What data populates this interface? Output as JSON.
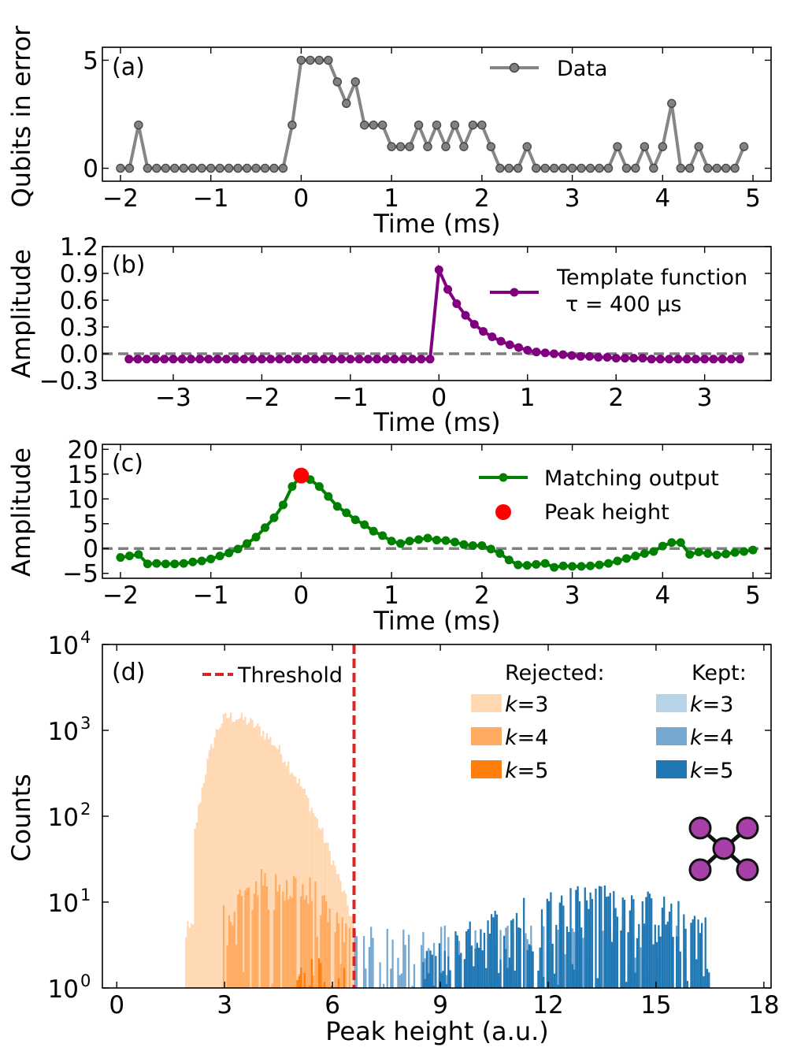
{
  "chart_data": [
    {
      "panel": "(a)",
      "type": "line",
      "xlabel": "Time (ms)",
      "ylabel": "Qubits in error",
      "xlim": [
        -2.2,
        5.2
      ],
      "ylim": [
        -0.6,
        5.6
      ],
      "xticks": [
        -2,
        -1,
        0,
        1,
        2,
        3,
        4,
        5
      ],
      "xtick_labels": [
        "−2",
        "−1",
        "0",
        "1",
        "2",
        "3",
        "4",
        "5"
      ],
      "yticks": [
        0,
        5
      ],
      "ytick_labels": [
        "0",
        "5"
      ],
      "legend": "upper-center",
      "series": [
        {
          "name": "Data",
          "color": "#7f7f7f",
          "x_start": -2.0,
          "x_step": 0.1,
          "values": [
            0,
            0,
            2,
            0,
            0,
            0,
            0,
            0,
            0,
            0,
            0,
            0,
            0,
            0,
            0,
            0,
            0,
            0,
            0,
            2,
            5,
            5,
            5,
            5,
            4,
            3,
            4,
            2,
            2,
            2,
            1,
            1,
            1,
            2,
            1,
            2,
            1,
            2,
            1,
            2,
            2,
            1,
            0,
            0,
            0,
            1,
            0,
            0,
            0,
            0,
            0,
            0,
            0,
            0,
            0,
            1,
            0,
            0,
            1,
            0,
            1,
            3,
            0,
            0,
            1,
            0,
            0,
            0,
            0,
            1
          ]
        }
      ]
    },
    {
      "panel": "(b)",
      "type": "line",
      "xlabel": "Time (ms)",
      "ylabel": "Amplitude",
      "xlim": [
        -3.8,
        3.75
      ],
      "ylim": [
        -0.3,
        1.2
      ],
      "xticks": [
        -3,
        -2,
        -1,
        0,
        1,
        2,
        3
      ],
      "xtick_labels": [
        "−3",
        "−2",
        "−1",
        "0",
        "1",
        "2",
        "3"
      ],
      "yticks": [
        -0.3,
        0.0,
        0.3,
        0.6,
        0.9,
        1.2
      ],
      "ytick_labels": [
        "−0.3",
        "0.0",
        "0.3",
        "0.6",
        "0.9",
        "1.2"
      ],
      "baseline": 0.0,
      "legend": "upper-right",
      "series": [
        {
          "name": "Template function",
          "name_line2": "τ = 400 μs",
          "color": "#800080",
          "x_start": -3.5,
          "x_step": 0.1,
          "values": [
            -0.06,
            -0.06,
            -0.06,
            -0.06,
            -0.06,
            -0.06,
            -0.06,
            -0.06,
            -0.06,
            -0.06,
            -0.06,
            -0.06,
            -0.06,
            -0.06,
            -0.06,
            -0.06,
            -0.06,
            -0.06,
            -0.06,
            -0.06,
            -0.06,
            -0.06,
            -0.06,
            -0.06,
            -0.06,
            -0.06,
            -0.06,
            -0.06,
            -0.06,
            -0.06,
            -0.06,
            -0.06,
            -0.06,
            -0.06,
            -0.06,
            0.94,
            0.72,
            0.56,
            0.43,
            0.33,
            0.25,
            0.19,
            0.14,
            0.1,
            0.07,
            0.04,
            0.02,
            0.01,
            0.0,
            -0.01,
            -0.02,
            -0.03,
            -0.03,
            -0.04,
            -0.04,
            -0.05,
            -0.05,
            -0.05,
            -0.05,
            -0.06,
            -0.06,
            -0.06,
            -0.06,
            -0.06,
            -0.06,
            -0.06,
            -0.06,
            -0.06,
            -0.06,
            -0.06
          ]
        }
      ]
    },
    {
      "panel": "(c)",
      "type": "line",
      "xlabel": "Time (ms)",
      "ylabel": "Amplitude",
      "xlim": [
        -2.2,
        5.2
      ],
      "ylim": [
        -6,
        21
      ],
      "xticks": [
        -2,
        -1,
        0,
        1,
        2,
        3,
        4,
        5
      ],
      "xtick_labels": [
        "−2",
        "−1",
        "0",
        "1",
        "2",
        "3",
        "4",
        "5"
      ],
      "yticks": [
        -5,
        0,
        5,
        10,
        15,
        20
      ],
      "ytick_labels": [
        "−5",
        "0",
        "5",
        "10",
        "15",
        "20"
      ],
      "baseline": 0.0,
      "legend": "upper-right",
      "series": [
        {
          "name": "Matching output",
          "color": "#008000",
          "x_start": -2.0,
          "x_step": 0.1,
          "values": [
            -1.8,
            -1.5,
            -1.2,
            -3.1,
            -3.0,
            -3.1,
            -3.1,
            -3.0,
            -2.7,
            -2.5,
            -2.1,
            -1.5,
            -0.9,
            -0.1,
            1.0,
            2.3,
            4.2,
            6.2,
            8.8,
            12.5,
            14.7,
            13.9,
            12.5,
            10.5,
            8.5,
            7.2,
            5.8,
            4.8,
            3.5,
            2.6,
            1.5,
            1.0,
            1.5,
            1.8,
            2.1,
            1.7,
            1.6,
            1.3,
            0.8,
            0.6,
            0.6,
            -0.1,
            -1.0,
            -2.3,
            -3.3,
            -3.4,
            -3.2,
            -3.0,
            -3.8,
            -3.5,
            -3.6,
            -3.6,
            -3.5,
            -3.3,
            -3.0,
            -2.5,
            -2.0,
            -1.5,
            -1.0,
            -0.6,
            0.5,
            1.2,
            1.2,
            -1.2,
            -0.7,
            -1.0,
            -1.3,
            -1.1,
            -0.8,
            -0.6,
            -0.3
          ]
        }
      ],
      "peak": {
        "name": "Peak height",
        "x": 0.0,
        "y": 14.7,
        "color": "#ff0000"
      }
    },
    {
      "panel": "(d)",
      "type": "histogram",
      "xlabel": "Peak height (a.u.)",
      "ylabel": "Counts",
      "xlim": [
        -0.4,
        18.2
      ],
      "yscale": "log",
      "ylim": [
        1,
        10000
      ],
      "xticks": [
        0,
        3,
        6,
        9,
        12,
        15,
        18
      ],
      "xtick_labels": [
        "0",
        "3",
        "6",
        "9",
        "12",
        "15",
        "18"
      ],
      "yticks": [
        1,
        10,
        100,
        1000,
        10000
      ],
      "ytick_base": "10",
      "ytick_exponents": [
        "0",
        "1",
        "2",
        "3",
        "4"
      ],
      "threshold": {
        "name": "Threshold",
        "x": 6.6,
        "color": "#d62728"
      },
      "legend_titles": {
        "rejected": "Rejected:",
        "kept": "Kept:"
      },
      "k_var": "k",
      "legend_entries": {
        "rejected": [
          {
            "k": "=3",
            "color": "#ffd8b2"
          },
          {
            "k": "=4",
            "color": "#ffab61"
          },
          {
            "k": "=5",
            "color": "#ff7f0e"
          }
        ],
        "kept": [
          {
            "k": "=3",
            "color": "#b7d3e8"
          },
          {
            "k": "=4",
            "color": "#76a8d0"
          },
          {
            "k": "=5",
            "color": "#1f77b4"
          }
        ]
      },
      "bin_width": 0.05,
      "series": [
        {
          "name": "Rejected k=3",
          "color": "#ffd8b2",
          "shape": "lognormal-like",
          "range": [
            1.9,
            6.6
          ],
          "peak": [
            3.1,
            1450
          ]
        },
        {
          "name": "Rejected k=4",
          "color": "#ffab61",
          "shape": "noisy",
          "range": [
            2.95,
            6.5
          ],
          "peak": [
            4.5,
            22
          ]
        },
        {
          "name": "Rejected k=5",
          "color": "#ff7f0e",
          "shape": "sparse",
          "range": [
            5.0,
            6.5
          ],
          "peak": [
            5.5,
            2
          ]
        },
        {
          "name": "Kept k=3",
          "color": "#b7d3e8",
          "shape": "sparse",
          "range": [
            6.6,
            7.6
          ],
          "peak": [
            7.0,
            3
          ]
        },
        {
          "name": "Kept k=4",
          "color": "#76a8d0",
          "shape": "sparse",
          "range": [
            6.6,
            16.0
          ],
          "peak": [
            12.0,
            5
          ]
        },
        {
          "name": "Kept k=5",
          "color": "#1f77b4",
          "shape": "noisy",
          "range": [
            8.5,
            16.5
          ],
          "peak": [
            13.3,
            13
          ]
        }
      ]
    }
  ]
}
